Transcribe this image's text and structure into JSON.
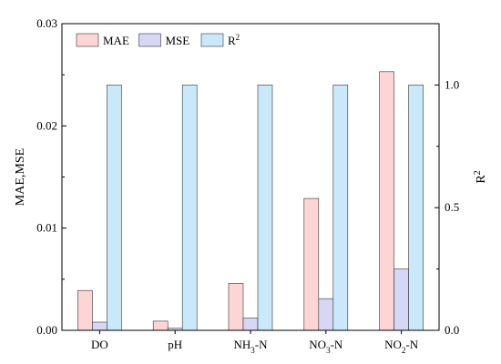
{
  "chart_data": {
    "type": "bar",
    "categories": [
      "DO",
      "pH",
      "NH3-N",
      "NO3-N",
      "NO2-N"
    ],
    "category_labels": [
      {
        "pre": "DO",
        "sub": "",
        "post": ""
      },
      {
        "pre": "pH",
        "sub": "",
        "post": ""
      },
      {
        "pre": "NH",
        "sub": "3",
        "post": "-N"
      },
      {
        "pre": "NO",
        "sub": "3",
        "post": "-N"
      },
      {
        "pre": "NO",
        "sub": "2",
        "post": "-N"
      }
    ],
    "series": [
      {
        "name": "MAE",
        "axis": "left",
        "color": "#fdd5d5",
        "values": [
          0.0039,
          0.0009,
          0.0046,
          0.0129,
          0.0253
        ]
      },
      {
        "name": "MSE",
        "axis": "left",
        "color": "#d6d6f5",
        "values": [
          0.0008,
          0.0002,
          0.0012,
          0.0031,
          0.006
        ]
      },
      {
        "name": "R2",
        "axis": "right",
        "color": "#c9e8f9",
        "values": [
          1.0,
          1.0,
          1.0,
          1.0,
          1.0
        ]
      }
    ],
    "legend_labels": [
      {
        "pre": "MAE",
        "sup": ""
      },
      {
        "pre": "MSE",
        "sup": ""
      },
      {
        "pre": "R",
        "sup": "2"
      }
    ],
    "y_left": {
      "label": "MAE,MSE",
      "ylim": [
        0,
        0.03
      ],
      "ticks": [
        0,
        0.01,
        0.02,
        0.03
      ],
      "tick_labels": [
        "0.00",
        "0.01",
        "0.02",
        "0.03"
      ]
    },
    "y_right": {
      "label_pre": "R",
      "label_sup": "2",
      "ylim": [
        0,
        1.25
      ],
      "ticks": [
        0,
        0.5,
        1.0
      ],
      "tick_labels": [
        "0.0",
        "0.5",
        "1.0"
      ]
    },
    "legend_position": "top-left",
    "grid": false,
    "bar_stroke": "#333333"
  }
}
